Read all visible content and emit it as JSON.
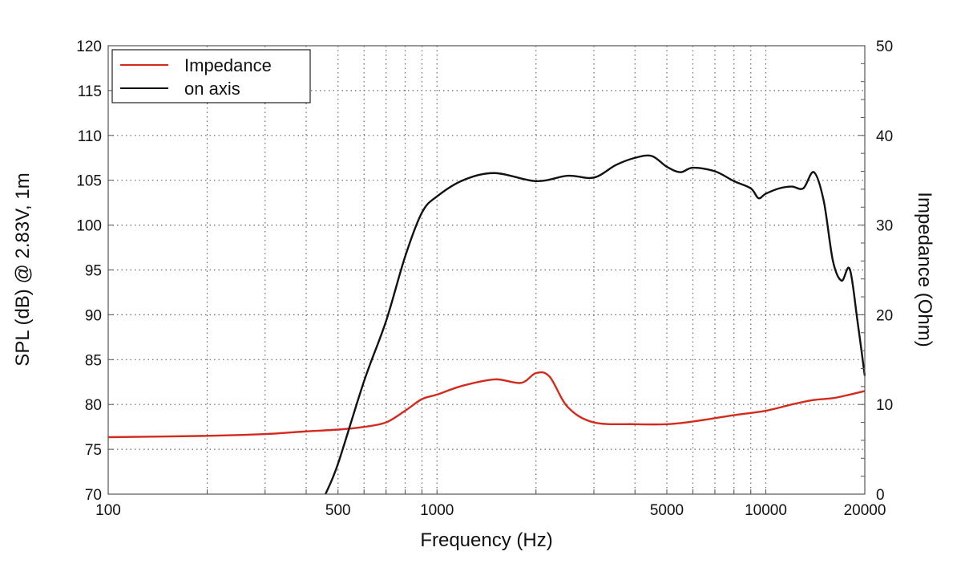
{
  "chart_data": {
    "type": "line",
    "title": "",
    "xlabel": "Frequency (Hz)",
    "ylabel": "SPL (dB) @ 2.83V, 1m",
    "y2label": "Impedance (Ohm)",
    "xscale": "log",
    "xlim": [
      100,
      20000
    ],
    "ylim": [
      70,
      120
    ],
    "y2lim": [
      0,
      50
    ],
    "grid": true,
    "legend_position": "top-left",
    "xticks": [
      100,
      500,
      1000,
      5000,
      10000,
      20000
    ],
    "xtick_labels": [
      "100",
      "500",
      "1000",
      "5000",
      "10000",
      "20000"
    ],
    "yticks": [
      70,
      75,
      80,
      85,
      90,
      95,
      100,
      105,
      110,
      115,
      120
    ],
    "y2ticks": [
      0,
      10,
      20,
      30,
      40,
      50
    ],
    "series": [
      {
        "name": "Impedance",
        "axis": "right",
        "color": "#d42a1e",
        "x": [
          100,
          200,
          300,
          400,
          500,
          600,
          700,
          800,
          900,
          1000,
          1200,
          1500,
          1800,
          2000,
          2200,
          2500,
          3000,
          4000,
          5000,
          6000,
          8000,
          10000,
          12000,
          14000,
          16000,
          18000,
          20000
        ],
        "y": [
          6.35,
          6.5,
          6.7,
          7.0,
          7.2,
          7.5,
          8.0,
          9.3,
          10.6,
          11.1,
          12.1,
          12.8,
          12.4,
          13.5,
          13.1,
          9.7,
          8.0,
          7.8,
          7.8,
          8.1,
          8.8,
          9.3,
          10.0,
          10.5,
          10.7,
          11.1,
          11.5
        ]
      },
      {
        "name": "on axis",
        "axis": "left",
        "color": "#111111",
        "x": [
          458,
          500,
          600,
          700,
          800,
          900,
          1000,
          1200,
          1500,
          2000,
          2500,
          3000,
          3500,
          4000,
          4500,
          5000,
          5500,
          6000,
          7000,
          8000,
          9000,
          9500,
          10000,
          11000,
          12000,
          13000,
          14000,
          15000,
          16000,
          17000,
          18000,
          19000,
          20000
        ],
        "y": [
          70,
          73.4,
          82.6,
          89.3,
          96.5,
          101.4,
          103.2,
          105,
          105.8,
          104.9,
          105.5,
          105.3,
          106.7,
          107.5,
          107.7,
          106.5,
          105.9,
          106.4,
          106,
          104.9,
          104.1,
          103,
          103.5,
          104.1,
          104.3,
          104.1,
          105.9,
          102.7,
          96,
          93.8,
          95.1,
          89.3,
          83.2
        ]
      }
    ]
  }
}
